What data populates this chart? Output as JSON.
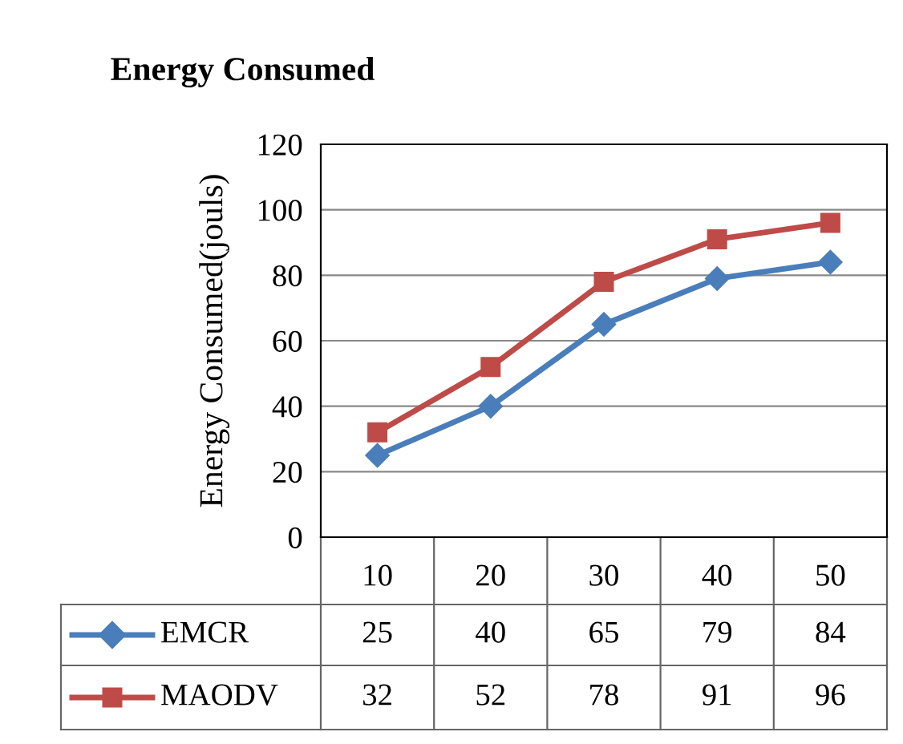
{
  "chart_data": {
    "type": "line",
    "title": "Energy Consumed",
    "ylabel": "Energy Consumed(jouls)",
    "categories": [
      "10",
      "20",
      "30",
      "40",
      "50"
    ],
    "series": [
      {
        "name": "EMCR",
        "color": "#4a7ebb",
        "marker": "diamond",
        "values": [
          25,
          40,
          65,
          79,
          84
        ]
      },
      {
        "name": "MAODV",
        "color": "#be4b48",
        "marker": "square",
        "values": [
          32,
          52,
          78,
          91,
          96
        ]
      }
    ],
    "ylim": [
      0,
      120
    ],
    "yticks": [
      0,
      20,
      40,
      60,
      80,
      100,
      120
    ],
    "grid": "y",
    "legend": "bottom left",
    "data_labels": true,
    "line_style": "solid"
  }
}
